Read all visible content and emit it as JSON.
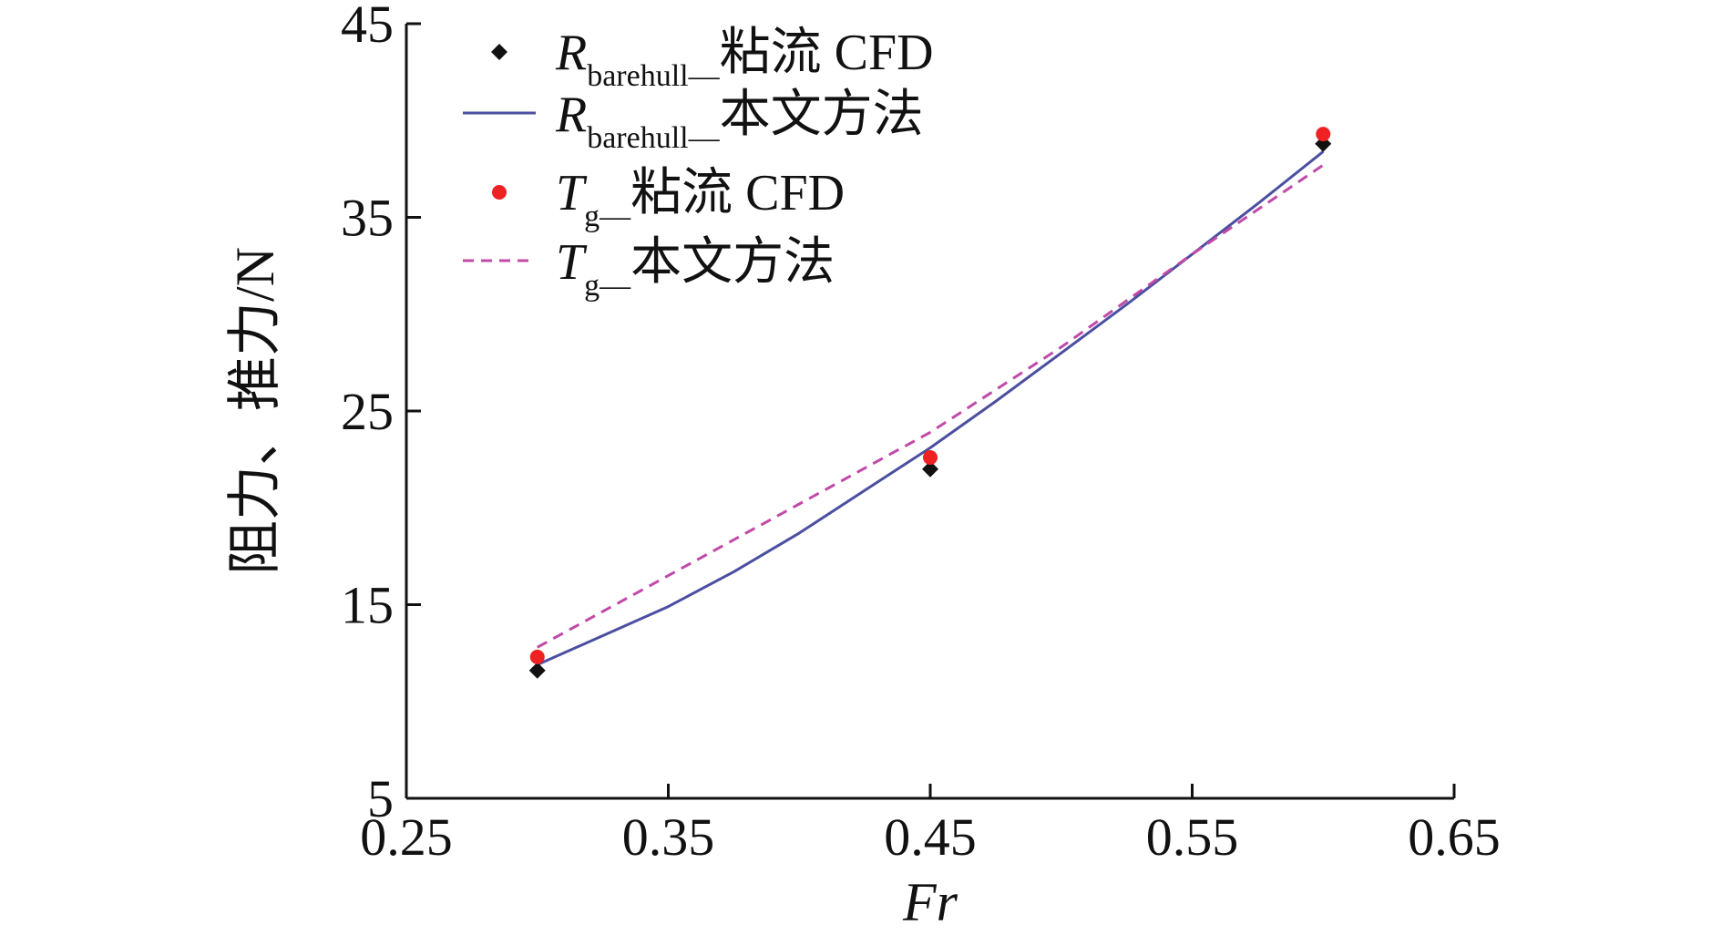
{
  "chart_data": {
    "type": "line",
    "title": "",
    "xlabel": "Fr",
    "ylabel": "阻力、推力/N",
    "xlim": [
      0.25,
      0.65
    ],
    "ylim": [
      5,
      45
    ],
    "xticks": [
      0.25,
      0.35,
      0.45,
      0.55,
      0.65
    ],
    "yticks": [
      5,
      15,
      25,
      35,
      45
    ],
    "xtick_labels": [
      "0.25",
      "0.35",
      "0.45",
      "0.55",
      "0.65"
    ],
    "ytick_labels": [
      "5",
      "15",
      "25",
      "35",
      "45"
    ],
    "grid": false,
    "legend_position": "top-left",
    "series": [
      {
        "id": "r-cfd",
        "name": "Rbarehull—粘流 CFD",
        "legend": {
          "main": "R",
          "sub": "barehull—",
          "rest": "粘流 CFD"
        },
        "kind": "scatter",
        "marker": "diamond",
        "color": "#111111",
        "x": [
          0.3,
          0.45,
          0.6
        ],
        "y": [
          11.6,
          22.0,
          38.8
        ]
      },
      {
        "id": "r-method",
        "name": "Rbarehull—本文方法",
        "legend": {
          "main": "R",
          "sub": "barehull—",
          "rest": "本文方法"
        },
        "kind": "line",
        "style": "solid",
        "color": "#4a4fa0",
        "x": [
          0.3,
          0.35,
          0.375,
          0.4,
          0.425,
          0.45,
          0.475,
          0.5,
          0.525,
          0.55,
          0.575,
          0.6
        ],
        "y": [
          11.9,
          14.9,
          16.7,
          18.7,
          20.9,
          23.1,
          25.5,
          28.0,
          30.5,
          33.1,
          35.7,
          38.4
        ]
      },
      {
        "id": "t-cfd",
        "name": "Tg—粘流 CFD",
        "legend": {
          "main": "T",
          "sub": "g—",
          "rest": "粘流 CFD"
        },
        "kind": "scatter",
        "marker": "circle",
        "color": "#ee2222",
        "x": [
          0.3,
          0.45,
          0.6
        ],
        "y": [
          12.3,
          22.6,
          39.3
        ]
      },
      {
        "id": "t-method",
        "name": "Tg—本文方法",
        "legend": {
          "main": "T",
          "sub": "g—",
          "rest": "本文方法"
        },
        "kind": "line",
        "style": "dashed",
        "color": "#c04aa8",
        "x": [
          0.3,
          0.35,
          0.4,
          0.45,
          0.5,
          0.55,
          0.575,
          0.6
        ],
        "y": [
          12.8,
          16.5,
          20.2,
          23.9,
          28.3,
          33.1,
          35.4,
          37.7
        ]
      }
    ]
  }
}
